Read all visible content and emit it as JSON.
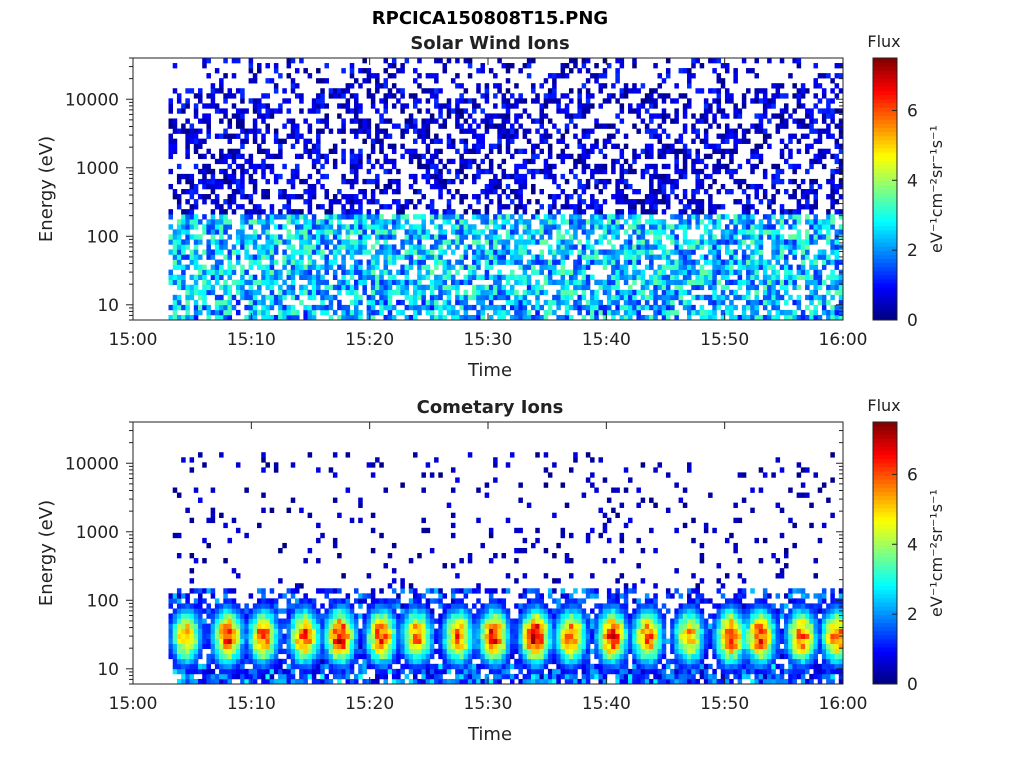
{
  "figure_title": "RPCICA150808T15.PNG",
  "chart_data": [
    {
      "type": "heatmap",
      "title": "Solar Wind Ions",
      "xlabel": "Time",
      "ylabel": "Energy (eV)",
      "y_scale": "log",
      "x_ticks": [
        "15:00",
        "15:10",
        "15:20",
        "15:30",
        "15:40",
        "15:50",
        "16:00"
      ],
      "y_ticks": [
        "10",
        "100",
        "1000",
        "10000"
      ],
      "xlim": [
        "15:00",
        "16:00"
      ],
      "ylim": [
        6,
        40000
      ],
      "data_start": "15:03",
      "data_end": "16:00",
      "colorbar": {
        "label": "Flux",
        "unit_label": "eV⁻¹cm⁻²sr⁻¹s⁻¹",
        "ticks": [
          "0",
          "2",
          "4",
          "6"
        ],
        "range": [
          0,
          7.5
        ],
        "colormap": "jet"
      },
      "grid": false,
      "description_values": {
        "low_energy_band_eV": [
          6,
          200
        ],
        "typical_flux_low_band": 2.5,
        "typical_flux_high_band": 0.5
      }
    },
    {
      "type": "heatmap",
      "title": "Cometary Ions",
      "xlabel": "Time",
      "ylabel": "Energy (eV)",
      "y_scale": "log",
      "x_ticks": [
        "15:00",
        "15:10",
        "15:20",
        "15:30",
        "15:40",
        "15:50",
        "16:00"
      ],
      "y_ticks": [
        "10",
        "100",
        "1000",
        "10000"
      ],
      "xlim": [
        "15:00",
        "16:00"
      ],
      "ylim": [
        6,
        40000
      ],
      "data_start": "15:03",
      "data_end": "16:00",
      "colorbar": {
        "label": "Flux",
        "unit_label": "eV⁻¹cm⁻²sr⁻¹s⁻¹",
        "ticks": [
          "0",
          "2",
          "4",
          "6"
        ],
        "range": [
          0,
          7.5
        ],
        "colormap": "jet"
      },
      "grid": false,
      "burst_peak_energy_eV": 30,
      "burst_times_min": [
        4.5,
        8,
        11,
        14.5,
        17.5,
        21,
        24,
        27.5,
        30.5,
        34,
        37,
        40.5,
        43.5,
        47,
        50.5,
        53,
        56.5,
        59.5
      ],
      "burst_peak_flux": [
        5.5,
        6.5,
        6,
        6.2,
        6.8,
        6.3,
        5.8,
        6,
        6.5,
        7,
        6.2,
        6.5,
        6,
        5.5,
        6.5,
        6.3,
        6,
        6
      ]
    }
  ]
}
